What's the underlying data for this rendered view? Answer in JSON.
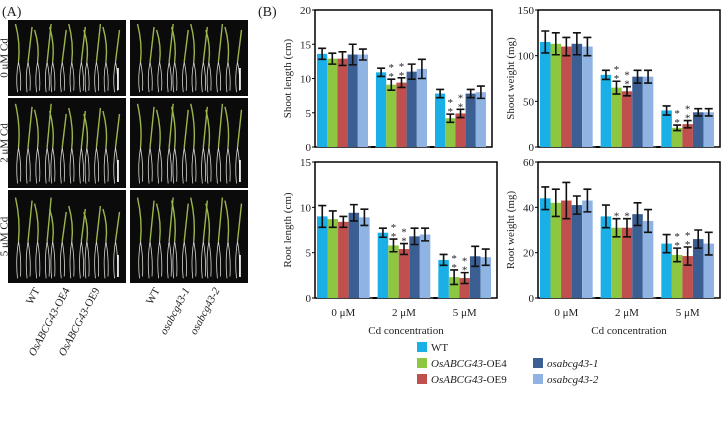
{
  "panel_a": {
    "label": "(A)",
    "rows": [
      "0 μM Cd",
      "2 μM Cd",
      "5 μM Cd"
    ],
    "left_genotypes": [
      {
        "name": "WT",
        "italic": ""
      },
      {
        "name": "-OE4",
        "italic": "OsABCG43"
      },
      {
        "name": "-OE9",
        "italic": "OsABCG43"
      }
    ],
    "right_genotypes": [
      {
        "name": "WT",
        "italic": ""
      },
      {
        "name": "",
        "italic": "osabcg43-1"
      },
      {
        "name": "",
        "italic": "osabcg43-2"
      }
    ]
  },
  "panel_b_label": "(B)",
  "legend": {
    "items": [
      {
        "label": "WT",
        "italic": "",
        "color": "#1aafe6"
      },
      {
        "label": "-OE4",
        "italic": "OsABCG43",
        "color": "#8dc641"
      },
      {
        "label": "-OE9",
        "italic": "OsABCG43",
        "color": "#c0504d"
      },
      {
        "label": "",
        "italic": "osabcg43-1",
        "color": "#3b5f93"
      },
      {
        "label": "",
        "italic": "osabcg43-2",
        "color": "#8fb4e3"
      }
    ]
  },
  "chart_data": [
    {
      "type": "bar",
      "title": "",
      "ylabel": "Shoot length (cm)",
      "xlabel": "",
      "categories": [
        "0 μM",
        "2 μM",
        "5 μM"
      ],
      "ylim": [
        0,
        20
      ],
      "yticks": [
        0,
        5,
        10,
        15,
        20
      ],
      "show_xticks": false,
      "series": [
        {
          "name": "WT",
          "values": [
            13.6,
            10.9,
            7.8
          ],
          "errors": [
            0.8,
            0.6,
            0.6
          ],
          "stars": [
            "",
            "",
            ""
          ]
        },
        {
          "name": "OsABCG43-OE4",
          "values": [
            12.9,
            9.1,
            4.2
          ],
          "errors": [
            0.8,
            0.8,
            0.6
          ],
          "stars": [
            "",
            "**",
            "**"
          ]
        },
        {
          "name": "OsABCG43-OE9",
          "values": [
            12.9,
            9.4,
            4.9
          ],
          "errors": [
            1.0,
            0.7,
            0.6
          ],
          "stars": [
            "",
            "**",
            "**"
          ]
        },
        {
          "name": "osabcg43-1",
          "values": [
            13.5,
            11.0,
            7.8
          ],
          "errors": [
            1.5,
            1.1,
            0.6
          ],
          "stars": [
            "",
            "",
            ""
          ]
        },
        {
          "name": "osabcg43-2",
          "values": [
            13.5,
            11.4,
            8.0
          ],
          "errors": [
            0.8,
            1.4,
            0.9
          ],
          "stars": [
            "",
            "",
            ""
          ]
        }
      ]
    },
    {
      "type": "bar",
      "title": "",
      "ylabel": "Shoot weight (mg)",
      "xlabel": "",
      "categories": [
        "0 μM",
        "2 μM",
        "5 μM"
      ],
      "ylim": [
        0,
        150
      ],
      "yticks": [
        0,
        50,
        100,
        150
      ],
      "show_xticks": false,
      "series": [
        {
          "name": "WT",
          "values": [
            115,
            79,
            40
          ],
          "errors": [
            12,
            5,
            5
          ],
          "stars": [
            "",
            "",
            ""
          ]
        },
        {
          "name": "OsABCG43-OE4",
          "values": [
            113,
            65,
            21
          ],
          "errors": [
            12,
            7,
            3
          ],
          "stars": [
            "",
            "**",
            "**"
          ]
        },
        {
          "name": "OsABCG43-OE9",
          "values": [
            110,
            61,
            25
          ],
          "errors": [
            10,
            5,
            4
          ],
          "stars": [
            "",
            "**",
            "**"
          ]
        },
        {
          "name": "osabcg43-1",
          "values": [
            113,
            77,
            38
          ],
          "errors": [
            12,
            7,
            4
          ],
          "stars": [
            "",
            "",
            ""
          ]
        },
        {
          "name": "osabcg43-2",
          "values": [
            110,
            77,
            38
          ],
          "errors": [
            10,
            7,
            4
          ],
          "stars": [
            "",
            "",
            ""
          ]
        }
      ]
    },
    {
      "type": "bar",
      "title": "",
      "ylabel": "Root length (cm)",
      "xlabel": "Cd concentration",
      "categories": [
        "0 μM",
        "2 μM",
        "5 μM"
      ],
      "ylim": [
        0,
        15
      ],
      "yticks": [
        0,
        5,
        10,
        15
      ],
      "show_xticks": true,
      "series": [
        {
          "name": "WT",
          "values": [
            9.0,
            7.2,
            4.2
          ],
          "errors": [
            1.2,
            0.5,
            0.6
          ],
          "stars": [
            "",
            "",
            ""
          ]
        },
        {
          "name": "OsABCG43-OE4",
          "values": [
            8.7,
            5.8,
            2.3
          ],
          "errors": [
            0.9,
            0.7,
            0.8
          ],
          "stars": [
            "",
            "**",
            "**"
          ]
        },
        {
          "name": "OsABCG43-OE9",
          "values": [
            8.4,
            5.4,
            2.2
          ],
          "errors": [
            0.6,
            0.6,
            0.6
          ],
          "stars": [
            "",
            "**",
            "**"
          ]
        },
        {
          "name": "osabcg43-1",
          "values": [
            9.4,
            6.8,
            4.6
          ],
          "errors": [
            0.9,
            0.9,
            1.1
          ],
          "stars": [
            "",
            "",
            ""
          ]
        },
        {
          "name": "osabcg43-2",
          "values": [
            8.9,
            7.0,
            4.5
          ],
          "errors": [
            0.9,
            0.7,
            0.9
          ],
          "stars": [
            "",
            "",
            ""
          ]
        }
      ]
    },
    {
      "type": "bar",
      "title": "",
      "ylabel": "Root weight (mg)",
      "xlabel": "Cd concentration",
      "categories": [
        "0 μM",
        "2 μM",
        "5 μM"
      ],
      "ylim": [
        0,
        60
      ],
      "yticks": [
        0,
        20,
        40,
        60
      ],
      "show_xticks": true,
      "series": [
        {
          "name": "WT",
          "values": [
            44,
            36,
            24
          ],
          "errors": [
            5,
            5,
            4
          ],
          "stars": [
            "",
            "",
            ""
          ]
        },
        {
          "name": "OsABCG43-OE4",
          "values": [
            42,
            31,
            19
          ],
          "errors": [
            6,
            4,
            3
          ],
          "stars": [
            "",
            "*",
            "**"
          ]
        },
        {
          "name": "OsABCG43-OE9",
          "values": [
            43,
            31,
            18.5
          ],
          "errors": [
            8,
            4,
            4
          ],
          "stars": [
            "",
            "*",
            "**"
          ]
        },
        {
          "name": "osabcg43-1",
          "values": [
            41,
            37,
            26
          ],
          "errors": [
            4,
            5,
            4
          ],
          "stars": [
            "",
            "",
            ""
          ]
        },
        {
          "name": "osabcg43-2",
          "values": [
            43,
            34,
            24
          ],
          "errors": [
            5,
            5,
            5
          ],
          "stars": [
            "",
            "",
            ""
          ]
        }
      ]
    }
  ]
}
